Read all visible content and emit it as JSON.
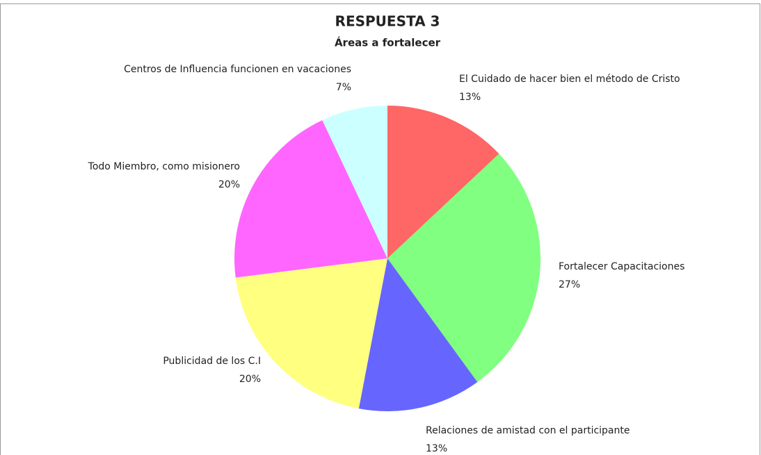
{
  "chart_data": {
    "type": "pie",
    "title": "RESPUESTA 3",
    "subtitle": "Áreas a fortalecer",
    "categories": [
      "El Cuidado de hacer bien el método de Cristo",
      "Fortalecer Capacitaciones",
      "Relaciones de amistad con el participante",
      "Publicidad de los C.I",
      "Todo Miembro, como misionero",
      "Centros de Influencia funcionen en vacaciones"
    ],
    "values": [
      13,
      27,
      13,
      20,
      20,
      7
    ],
    "value_labels": [
      "13%",
      "27%",
      "13%",
      "20%",
      "20%",
      "7%"
    ],
    "colors": [
      "#ff6666",
      "#80ff80",
      "#6666ff",
      "#ffff80",
      "#ff66ff",
      "#ccffff"
    ]
  }
}
